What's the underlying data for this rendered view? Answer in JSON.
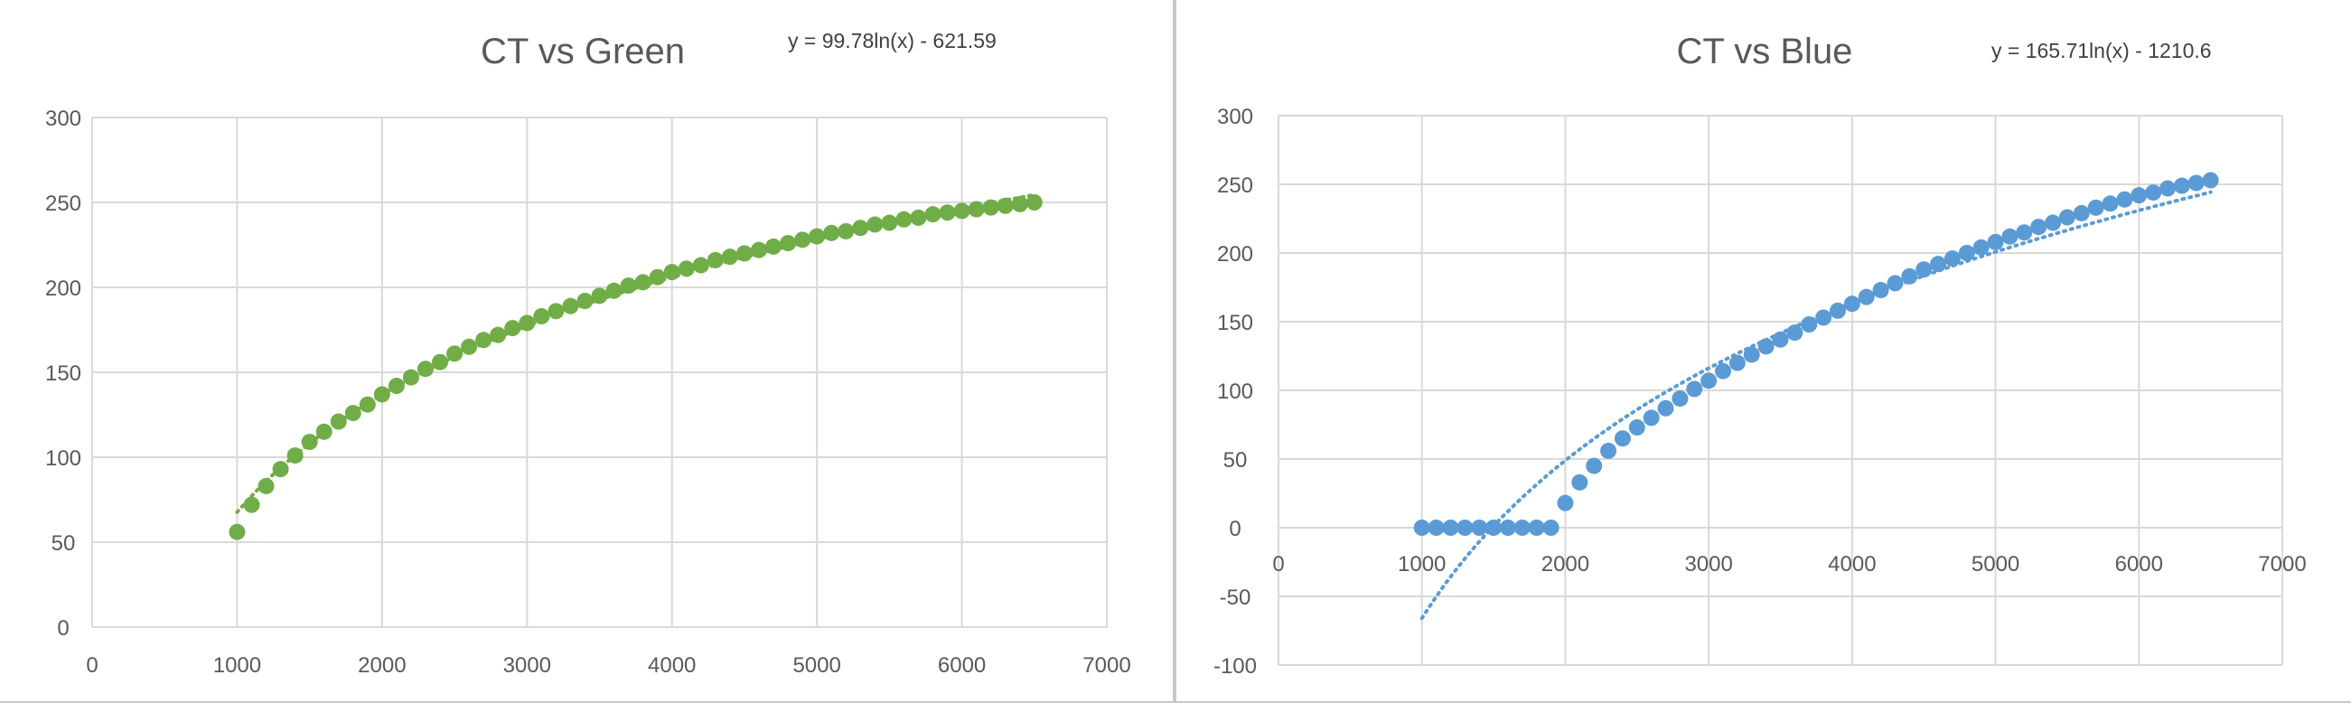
{
  "chart_data": [
    {
      "type": "scatter",
      "title": "CT vs Green",
      "trendline_equation": "y = 99.78ln(x) - 621.59",
      "trendline": {
        "type": "logarithmic",
        "a": 99.78,
        "b": -621.59,
        "style": "dotted",
        "x_range": [
          1000,
          6500
        ]
      },
      "xlim": [
        0,
        7000
      ],
      "ylim": [
        0,
        300
      ],
      "x_ticks": [
        "0",
        "1000",
        "2000",
        "3000",
        "4000",
        "5000",
        "6000",
        "7000"
      ],
      "y_ticks": [
        "0",
        "50",
        "100",
        "150",
        "200",
        "250",
        "300"
      ],
      "grid": true,
      "legend": "none",
      "color": "#70ad47",
      "x": [
        1000,
        1100,
        1200,
        1300,
        1400,
        1500,
        1600,
        1700,
        1800,
        1900,
        2000,
        2100,
        2200,
        2300,
        2400,
        2500,
        2600,
        2700,
        2800,
        2900,
        3000,
        3100,
        3200,
        3300,
        3400,
        3500,
        3600,
        3700,
        3800,
        3900,
        4000,
        4100,
        4200,
        4300,
        4400,
        4500,
        4600,
        4700,
        4800,
        4900,
        5000,
        5100,
        5200,
        5300,
        5400,
        5500,
        5600,
        5700,
        5800,
        5900,
        6000,
        6100,
        6200,
        6300,
        6400,
        6500
      ],
      "y": [
        56,
        72,
        83,
        93,
        101,
        109,
        115,
        121,
        126,
        131,
        137,
        142,
        147,
        152,
        156,
        161,
        165,
        169,
        172,
        176,
        179,
        183,
        186,
        189,
        192,
        195,
        198,
        201,
        203,
        206,
        209,
        211,
        213,
        216,
        218,
        220,
        222,
        224,
        226,
        228,
        230,
        232,
        233,
        235,
        237,
        238,
        240,
        241,
        243,
        244,
        245,
        246,
        247,
        248,
        249,
        250
      ]
    },
    {
      "type": "scatter",
      "title": "CT vs Blue",
      "trendline_equation": "y = 165.71ln(x) - 1210.6",
      "trendline": {
        "type": "logarithmic",
        "a": 165.71,
        "b": -1210.6,
        "style": "dotted",
        "x_range": [
          1000,
          6500
        ]
      },
      "xlim": [
        0,
        7000
      ],
      "ylim": [
        -100,
        300
      ],
      "x_ticks": [
        "0",
        "1000",
        "2000",
        "3000",
        "4000",
        "5000",
        "6000",
        "7000"
      ],
      "y_ticks": [
        "-100",
        "-50",
        "0",
        "50",
        "100",
        "150",
        "200",
        "250",
        "300"
      ],
      "grid": true,
      "legend": "none",
      "color": "#5b9bd5",
      "x": [
        1000,
        1100,
        1200,
        1300,
        1400,
        1500,
        1600,
        1700,
        1800,
        1900,
        2000,
        2100,
        2200,
        2300,
        2400,
        2500,
        2600,
        2700,
        2800,
        2900,
        3000,
        3100,
        3200,
        3300,
        3400,
        3500,
        3600,
        3700,
        3800,
        3900,
        4000,
        4100,
        4200,
        4300,
        4400,
        4500,
        4600,
        4700,
        4800,
        4900,
        5000,
        5100,
        5200,
        5300,
        5400,
        5500,
        5600,
        5700,
        5800,
        5900,
        6000,
        6100,
        6200,
        6300,
        6400,
        6500
      ],
      "y": [
        0,
        0,
        0,
        0,
        0,
        0,
        0,
        0,
        0,
        0,
        18,
        33,
        45,
        56,
        65,
        73,
        80,
        87,
        94,
        101,
        107,
        114,
        120,
        126,
        132,
        137,
        142,
        148,
        153,
        158,
        163,
        168,
        173,
        178,
        183,
        188,
        192,
        196,
        200,
        204,
        208,
        212,
        215,
        219,
        222,
        226,
        229,
        233,
        236,
        239,
        242,
        244,
        247,
        249,
        251,
        253
      ]
    }
  ]
}
